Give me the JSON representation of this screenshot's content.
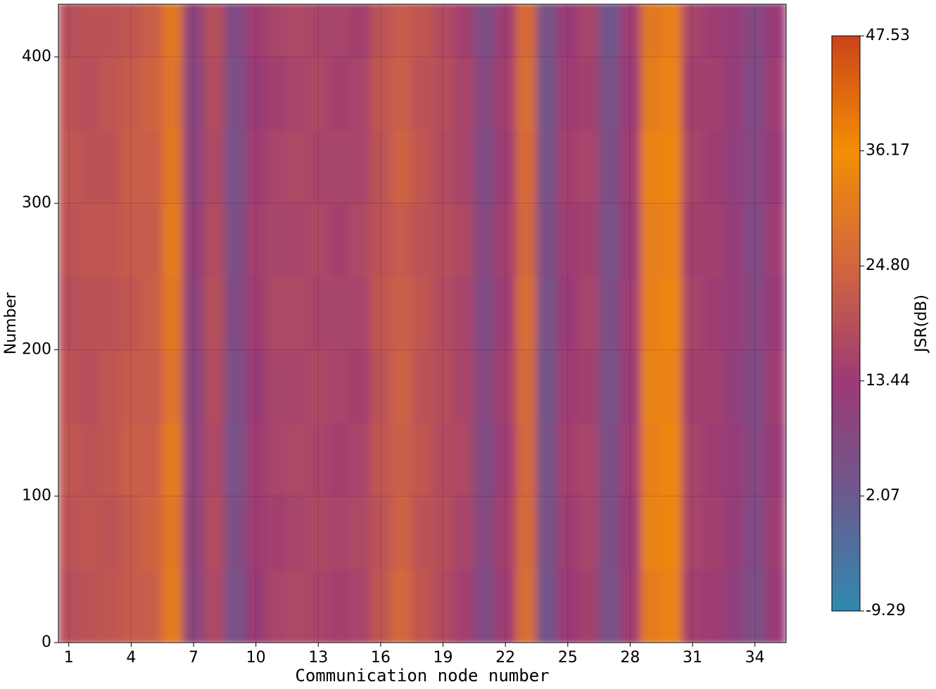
{
  "chart_data": {
    "type": "heatmap",
    "xlabel": "Communication node number",
    "ylabel": "Number",
    "colorbar_label": "JSR(dB)",
    "x": [
      1,
      2,
      3,
      4,
      5,
      6,
      7,
      8,
      9,
      10,
      11,
      12,
      13,
      14,
      15,
      16,
      17,
      18,
      19,
      20,
      21,
      22,
      23,
      24,
      25,
      26,
      27,
      28,
      29,
      30,
      31,
      32,
      33,
      34,
      35
    ],
    "ybins": [
      0,
      50,
      100,
      150,
      200,
      250,
      300,
      350,
      400,
      436
    ],
    "z": [
      [
        19,
        20,
        21,
        22,
        23,
        31,
        9,
        17,
        5,
        13,
        16,
        17,
        16,
        15,
        16,
        21,
        25,
        21,
        18,
        15,
        7,
        14,
        27,
        4,
        13,
        15,
        5,
        14,
        31,
        33,
        15,
        14,
        11,
        6,
        13
      ],
      [
        20,
        21,
        20,
        22,
        24,
        30,
        10,
        18,
        6,
        14,
        15,
        16,
        17,
        16,
        17,
        20,
        24,
        20,
        19,
        16,
        8,
        15,
        26,
        5,
        14,
        16,
        6,
        13,
        33,
        34,
        16,
        15,
        12,
        7,
        14
      ],
      [
        21,
        20,
        21,
        23,
        23,
        31,
        10,
        17,
        5,
        14,
        16,
        17,
        16,
        15,
        16,
        21,
        23,
        21,
        18,
        17,
        7,
        14,
        25,
        5,
        15,
        16,
        6,
        14,
        32,
        34,
        16,
        14,
        12,
        8,
        13
      ],
      [
        20,
        19,
        21,
        22,
        22,
        29,
        9,
        18,
        6,
        13,
        16,
        16,
        17,
        16,
        15,
        20,
        24,
        20,
        19,
        16,
        8,
        15,
        26,
        4,
        14,
        15,
        5,
        13,
        33,
        33,
        15,
        15,
        11,
        7,
        14
      ],
      [
        19,
        20,
        20,
        21,
        23,
        30,
        10,
        19,
        7,
        14,
        17,
        17,
        16,
        16,
        16,
        21,
        23,
        21,
        18,
        16,
        7,
        14,
        27,
        5,
        13,
        16,
        6,
        14,
        32,
        34,
        16,
        14,
        12,
        8,
        13
      ],
      [
        20,
        21,
        21,
        22,
        22,
        31,
        11,
        18,
        6,
        15,
        16,
        16,
        17,
        15,
        17,
        20,
        22,
        20,
        19,
        17,
        8,
        15,
        25,
        6,
        14,
        15,
        5,
        13,
        32,
        33,
        15,
        15,
        12,
        7,
        14
      ],
      [
        21,
        20,
        20,
        23,
        23,
        30,
        10,
        17,
        5,
        14,
        16,
        17,
        16,
        16,
        16,
        20,
        24,
        21,
        18,
        16,
        7,
        14,
        26,
        5,
        15,
        16,
        6,
        14,
        33,
        34,
        16,
        14,
        11,
        8,
        13
      ],
      [
        20,
        19,
        21,
        22,
        24,
        29,
        9,
        18,
        6,
        13,
        15,
        16,
        17,
        15,
        16,
        21,
        23,
        20,
        19,
        16,
        8,
        15,
        27,
        4,
        14,
        15,
        5,
        13,
        31,
        33,
        15,
        15,
        12,
        7,
        14
      ],
      [
        19,
        20,
        20,
        21,
        23,
        30,
        10,
        19,
        7,
        14,
        16,
        17,
        16,
        16,
        15,
        20,
        22,
        21,
        18,
        15,
        6,
        14,
        26,
        5,
        13,
        16,
        3,
        14,
        30,
        32,
        16,
        14,
        12,
        8,
        13
      ]
    ],
    "xlim": [
      0.5,
      35.5
    ],
    "ylim": [
      0,
      436
    ],
    "xticks": [
      1,
      4,
      7,
      10,
      13,
      16,
      19,
      22,
      25,
      28,
      31,
      34
    ],
    "yticks": [
      0,
      100,
      200,
      300,
      400
    ],
    "zlim": [
      -9.29,
      47.53
    ],
    "zticks": [
      -9.29,
      2.07,
      13.44,
      {
        "value": 24.8,
        "label": "24.80"
      },
      36.17,
      47.53
    ],
    "colors": [
      "#2f8ab0",
      "#6b5a8e",
      "#9c3a76",
      "#d2663f",
      "#f38e04",
      "#cc4419"
    ],
    "grid": true
  }
}
